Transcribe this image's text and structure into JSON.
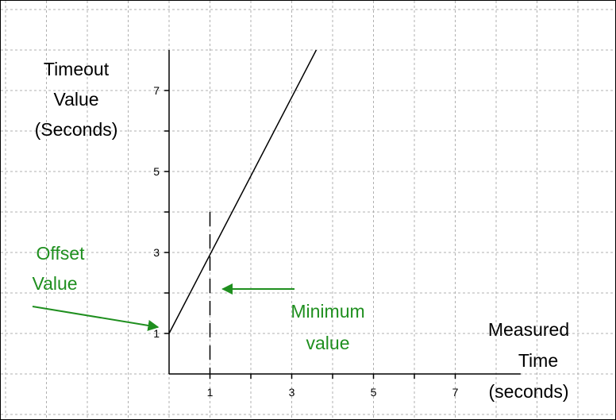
{
  "chart_data": {
    "type": "line",
    "title": "",
    "ylabel": [
      "Timeout",
      "Value",
      "(Seconds)"
    ],
    "xlabel": [
      "Measured",
      "Time",
      "(seconds)"
    ],
    "xlim": [
      0,
      8.6
    ],
    "ylim": [
      0,
      8.0
    ],
    "x_ticks": [
      1,
      2,
      3,
      4,
      5,
      6,
      7
    ],
    "x_tick_labels": [
      "1",
      "",
      "3",
      "",
      "5",
      "",
      "7"
    ],
    "y_ticks": [
      1,
      2,
      3,
      4,
      5,
      6,
      7
    ],
    "y_tick_labels": [
      "1",
      "",
      "3",
      "",
      "5",
      "",
      "7"
    ],
    "grid": true,
    "series": [
      {
        "x": [
          0,
          3.6
        ],
        "y": [
          1,
          8.0
        ]
      }
    ],
    "reference_line": {
      "x": 1,
      "y_range": [
        0,
        4
      ],
      "style": "dashed"
    },
    "annotations": [
      {
        "text": [
          "Offset",
          "Value"
        ],
        "points_to": {
          "x": 0,
          "y": 1
        }
      },
      {
        "text": [
          "Minimum",
          "value"
        ],
        "points_to": {
          "x": 1,
          "y": 2
        }
      }
    ],
    "colors": {
      "line": "#000000",
      "grid": "#b0b0b0",
      "annotation": "#1f8f1f",
      "text": "#000000"
    }
  }
}
